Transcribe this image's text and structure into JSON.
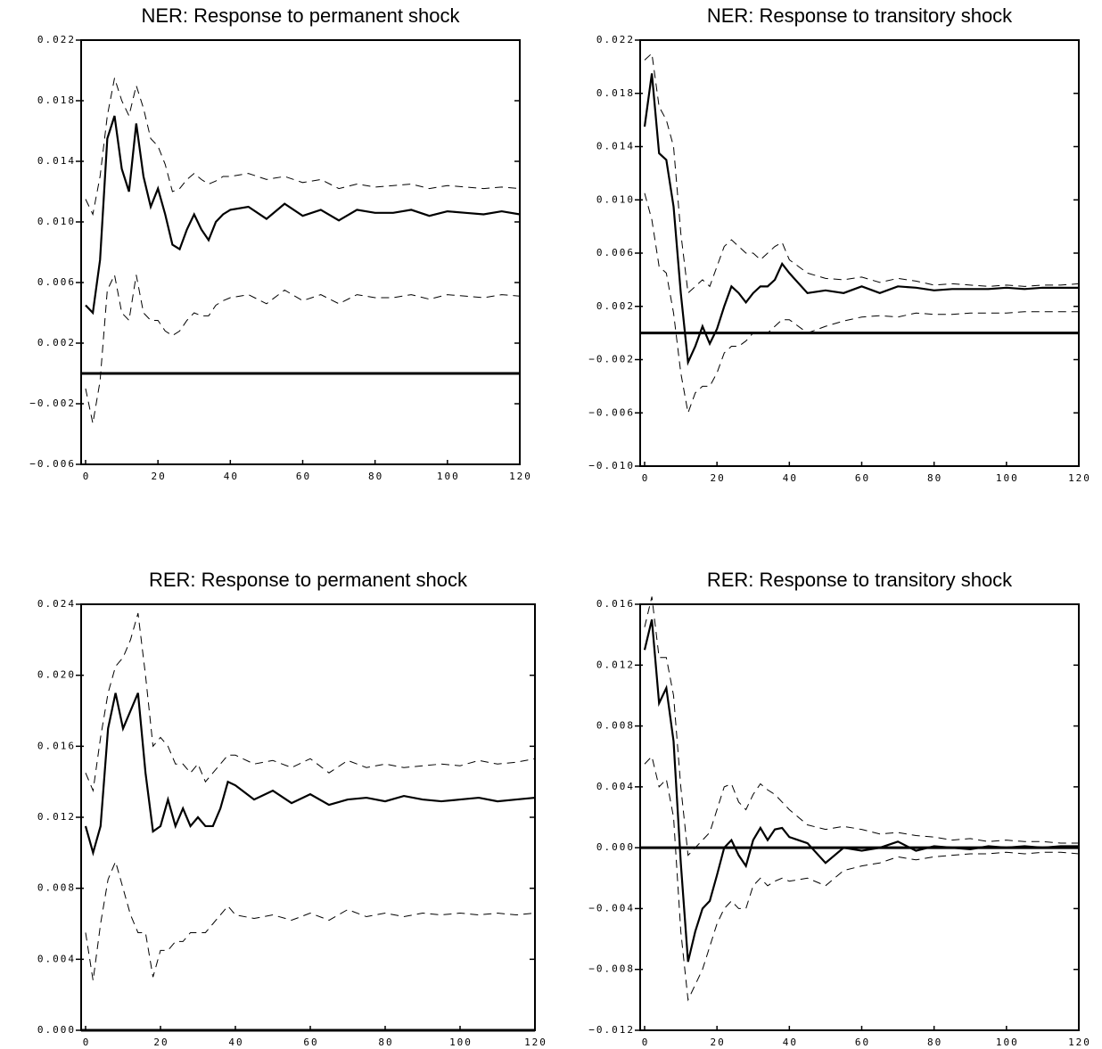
{
  "chart_data": [
    {
      "type": "line",
      "title": "NER: Response to permanent shock",
      "x": [
        0,
        2,
        4,
        6,
        8,
        10,
        12,
        14,
        16,
        18,
        20,
        22,
        24,
        26,
        28,
        30,
        32,
        34,
        36,
        38,
        40,
        45,
        50,
        55,
        60,
        65,
        70,
        75,
        80,
        85,
        90,
        95,
        100,
        105,
        110,
        115,
        120
      ],
      "series": [
        {
          "color": "#000000",
          "dashed": false,
          "values": [
            0.0045,
            0.004,
            0.0075,
            0.0155,
            0.017,
            0.0135,
            0.012,
            0.0165,
            0.013,
            0.011,
            0.0122,
            0.0105,
            0.0085,
            0.0082,
            0.0095,
            0.0105,
            0.0095,
            0.0088,
            0.01,
            0.0105,
            0.0108,
            0.011,
            0.0102,
            0.0112,
            0.0104,
            0.0108,
            0.0101,
            0.0108,
            0.0106,
            0.0106,
            0.0108,
            0.0104,
            0.0107,
            0.0106,
            0.0105,
            0.0107,
            0.0105
          ]
        },
        {
          "color": "#000000",
          "dashed": true,
          "values": [
            0.0115,
            0.0105,
            0.013,
            0.017,
            0.0195,
            0.018,
            0.017,
            0.019,
            0.0175,
            0.0155,
            0.015,
            0.0138,
            0.012,
            0.0122,
            0.0128,
            0.0132,
            0.0128,
            0.0125,
            0.0127,
            0.013,
            0.013,
            0.0132,
            0.0128,
            0.013,
            0.0126,
            0.0128,
            0.0122,
            0.0125,
            0.0123,
            0.0124,
            0.0125,
            0.0122,
            0.0124,
            0.0123,
            0.0122,
            0.0123,
            0.0122
          ]
        },
        {
          "color": "#000000",
          "dashed": true,
          "values": [
            -0.001,
            -0.0033,
            -0.0005,
            0.0055,
            0.0065,
            0.004,
            0.0035,
            0.0065,
            0.004,
            0.0035,
            0.0035,
            0.0028,
            0.0025,
            0.0028,
            0.0035,
            0.004,
            0.0038,
            0.0038,
            0.0045,
            0.0048,
            0.005,
            0.0052,
            0.0046,
            0.0055,
            0.0048,
            0.0052,
            0.0046,
            0.0052,
            0.005,
            0.005,
            0.0052,
            0.0049,
            0.0052,
            0.0051,
            0.005,
            0.0052,
            0.0051
          ]
        }
      ],
      "hline": 0,
      "xlim": [
        0,
        120
      ],
      "xticks": [
        0,
        20,
        40,
        60,
        80,
        100,
        120
      ],
      "ylim": [
        -0.006,
        0.022
      ],
      "yticks": [
        {
          "value": -0.006,
          "label": "−0.006"
        },
        {
          "value": -0.002,
          "label": "−0.002"
        },
        {
          "value": 0.002,
          "label": "0.002"
        },
        {
          "value": 0.006,
          "label": "0.006"
        },
        {
          "value": 0.01,
          "label": "0.010"
        },
        {
          "value": 0.014,
          "label": "0.014"
        },
        {
          "value": 0.018,
          "label": "0.018"
        },
        {
          "value": 0.022,
          "label": "0.022"
        }
      ]
    },
    {
      "type": "line",
      "title": "NER: Response to transitory shock",
      "x": [
        0,
        2,
        4,
        6,
        8,
        10,
        12,
        14,
        16,
        18,
        20,
        22,
        24,
        26,
        28,
        30,
        32,
        34,
        36,
        38,
        40,
        45,
        50,
        55,
        60,
        65,
        70,
        75,
        80,
        85,
        90,
        95,
        100,
        105,
        110,
        115,
        120
      ],
      "series": [
        {
          "color": "#000000",
          "dashed": false,
          "values": [
            0.0155,
            0.0195,
            0.0135,
            0.013,
            0.0095,
            0.003,
            -0.0022,
            -0.001,
            0.0005,
            -0.0008,
            0.0003,
            0.002,
            0.0035,
            0.003,
            0.0023,
            0.003,
            0.0035,
            0.0035,
            0.004,
            0.0052,
            0.0045,
            0.003,
            0.0032,
            0.003,
            0.0035,
            0.003,
            0.0035,
            0.0034,
            0.0032,
            0.0033,
            0.0033,
            0.0033,
            0.0034,
            0.0033,
            0.0034,
            0.0034,
            0.0034
          ]
        },
        {
          "color": "#000000",
          "dashed": true,
          "values": [
            0.0205,
            0.021,
            0.017,
            0.016,
            0.014,
            0.0075,
            0.003,
            0.0035,
            0.004,
            0.0035,
            0.005,
            0.0065,
            0.007,
            0.0065,
            0.006,
            0.006,
            0.0055,
            0.006,
            0.0065,
            0.0068,
            0.0055,
            0.0045,
            0.0041,
            0.004,
            0.0042,
            0.0038,
            0.0041,
            0.0039,
            0.0036,
            0.0037,
            0.0036,
            0.0035,
            0.0036,
            0.0035,
            0.0036,
            0.0036,
            0.0037
          ]
        },
        {
          "color": "#000000",
          "dashed": true,
          "values": [
            0.0105,
            0.0085,
            0.005,
            0.0045,
            0.0015,
            -0.003,
            -0.006,
            -0.0045,
            -0.004,
            -0.004,
            -0.003,
            -0.0015,
            -0.001,
            -0.001,
            -0.0006,
            0,
            0,
            0,
            0.0005,
            0.001,
            0.001,
            0,
            0.0005,
            0.0009,
            0.0012,
            0.0013,
            0.0012,
            0.0015,
            0.0014,
            0.0014,
            0.0015,
            0.0015,
            0.0015,
            0.0016,
            0.0016,
            0.0016,
            0.0016
          ]
        }
      ],
      "hline": 0,
      "xlim": [
        0,
        120
      ],
      "xticks": [
        0,
        20,
        40,
        60,
        80,
        100,
        120
      ],
      "ylim": [
        -0.01,
        0.022
      ],
      "yticks": [
        {
          "value": -0.01,
          "label": "−0.010"
        },
        {
          "value": -0.006,
          "label": "−0.006"
        },
        {
          "value": -0.002,
          "label": "−0.002"
        },
        {
          "value": 0.002,
          "label": "0.002"
        },
        {
          "value": 0.006,
          "label": "0.006"
        },
        {
          "value": 0.01,
          "label": "0.010"
        },
        {
          "value": 0.014,
          "label": "0.014"
        },
        {
          "value": 0.018,
          "label": "0.018"
        },
        {
          "value": 0.022,
          "label": "0.022"
        }
      ]
    },
    {
      "type": "line",
      "title": "RER: Response to permanent shock",
      "x": [
        0,
        2,
        4,
        6,
        8,
        10,
        12,
        14,
        16,
        18,
        20,
        22,
        24,
        26,
        28,
        30,
        32,
        34,
        36,
        38,
        40,
        45,
        50,
        55,
        60,
        65,
        70,
        75,
        80,
        85,
        90,
        95,
        100,
        105,
        110,
        115,
        120
      ],
      "series": [
        {
          "color": "#000000",
          "dashed": false,
          "values": [
            0.0115,
            0.01,
            0.0115,
            0.017,
            0.019,
            0.017,
            0.018,
            0.019,
            0.0145,
            0.0112,
            0.0115,
            0.013,
            0.0115,
            0.0125,
            0.0115,
            0.012,
            0.0115,
            0.0115,
            0.0125,
            0.014,
            0.0138,
            0.013,
            0.0135,
            0.0128,
            0.0133,
            0.0127,
            0.013,
            0.0131,
            0.0129,
            0.0132,
            0.013,
            0.0129,
            0.013,
            0.0131,
            0.0129,
            0.013,
            0.0131
          ]
        },
        {
          "color": "#000000",
          "dashed": true,
          "values": [
            0.0145,
            0.0135,
            0.0165,
            0.019,
            0.0205,
            0.021,
            0.022,
            0.0235,
            0.02,
            0.016,
            0.0165,
            0.016,
            0.015,
            0.015,
            0.0145,
            0.015,
            0.014,
            0.0145,
            0.015,
            0.0155,
            0.0155,
            0.015,
            0.0152,
            0.0148,
            0.0153,
            0.0145,
            0.0152,
            0.0148,
            0.015,
            0.0148,
            0.0149,
            0.015,
            0.0149,
            0.0152,
            0.015,
            0.0151,
            0.0153
          ]
        },
        {
          "color": "#000000",
          "dashed": true,
          "values": [
            0.0055,
            0.0028,
            0.006,
            0.0085,
            0.0095,
            0.008,
            0.0065,
            0.0055,
            0.0055,
            0.003,
            0.0045,
            0.0045,
            0.005,
            0.005,
            0.0055,
            0.0055,
            0.0055,
            0.006,
            0.0065,
            0.007,
            0.0065,
            0.0063,
            0.0065,
            0.0062,
            0.0066,
            0.0062,
            0.0068,
            0.0064,
            0.0066,
            0.0064,
            0.0066,
            0.0065,
            0.0066,
            0.0065,
            0.0066,
            0.0065,
            0.0066
          ]
        }
      ],
      "hline": 0,
      "xlim": [
        0,
        120
      ],
      "xticks": [
        0,
        20,
        40,
        60,
        80,
        100,
        120
      ],
      "ylim": [
        0,
        0.024
      ],
      "yticks": [
        {
          "value": 0,
          "label": "0.000"
        },
        {
          "value": 0.004,
          "label": "0.004"
        },
        {
          "value": 0.008,
          "label": "0.008"
        },
        {
          "value": 0.012,
          "label": "0.012"
        },
        {
          "value": 0.016,
          "label": "0.016"
        },
        {
          "value": 0.02,
          "label": "0.020"
        },
        {
          "value": 0.024,
          "label": "0.024"
        }
      ]
    },
    {
      "type": "line",
      "title": "RER: Response to transitory shock",
      "x": [
        0,
        2,
        4,
        6,
        8,
        10,
        12,
        14,
        16,
        18,
        20,
        22,
        24,
        26,
        28,
        30,
        32,
        34,
        36,
        38,
        40,
        45,
        50,
        55,
        60,
        65,
        70,
        75,
        80,
        85,
        90,
        95,
        100,
        105,
        110,
        115,
        120
      ],
      "series": [
        {
          "color": "#000000",
          "dashed": false,
          "values": [
            0.013,
            0.015,
            0.0095,
            0.0105,
            0.007,
            -0.001,
            -0.0075,
            -0.0055,
            -0.004,
            -0.0035,
            -0.0018,
            0,
            0.0005,
            -0.0005,
            -0.0012,
            0.0005,
            0.0013,
            0.0005,
            0.0012,
            0.0013,
            0.0007,
            0.0003,
            -0.001,
            0,
            -0.0002,
            0,
            0.0004,
            -0.0002,
            0.0001,
            0,
            -0.0001,
            0.0001,
            0,
            0.0001,
            0,
            0.0001,
            0.0001
          ]
        },
        {
          "color": "#000000",
          "dashed": true,
          "values": [
            0.0145,
            0.0165,
            0.0125,
            0.0125,
            0.01,
            0.004,
            -0.0005,
            0,
            0.0005,
            0.001,
            0.0025,
            0.004,
            0.0042,
            0.003,
            0.0025,
            0.0035,
            0.0042,
            0.0038,
            0.0035,
            0.003,
            0.0025,
            0.0015,
            0.0012,
            0.0014,
            0.0012,
            0.0009,
            0.001,
            0.0008,
            0.0007,
            0.0005,
            0.0006,
            0.0004,
            0.0005,
            0.0004,
            0.0004,
            0.0003,
            0.0003
          ]
        },
        {
          "color": "#000000",
          "dashed": true,
          "values": [
            0.0055,
            0.006,
            0.004,
            0.0045,
            0.002,
            -0.0055,
            -0.01,
            -0.009,
            -0.008,
            -0.0065,
            -0.005,
            -0.004,
            -0.0035,
            -0.004,
            -0.004,
            -0.0025,
            -0.002,
            -0.0025,
            -0.0022,
            -0.002,
            -0.0022,
            -0.002,
            -0.0025,
            -0.0015,
            -0.0012,
            -0.001,
            -0.0006,
            -0.0008,
            -0.0006,
            -0.0005,
            -0.0004,
            -0.0004,
            -0.0003,
            -0.0004,
            -0.0003,
            -0.0003,
            -0.0004
          ]
        }
      ],
      "hline": 0,
      "xlim": [
        0,
        120
      ],
      "xticks": [
        0,
        20,
        40,
        60,
        80,
        100,
        120
      ],
      "ylim": [
        -0.012,
        0.016
      ],
      "yticks": [
        {
          "value": -0.012,
          "label": "−0.012"
        },
        {
          "value": -0.008,
          "label": "−0.008"
        },
        {
          "value": -0.004,
          "label": "−0.004"
        },
        {
          "value": 0,
          "label": "0.000"
        },
        {
          "value": 0.004,
          "label": "0.004"
        },
        {
          "value": 0.008,
          "label": "0.008"
        },
        {
          "value": 0.012,
          "label": "0.012"
        },
        {
          "value": 0.016,
          "label": "0.016"
        }
      ]
    }
  ]
}
